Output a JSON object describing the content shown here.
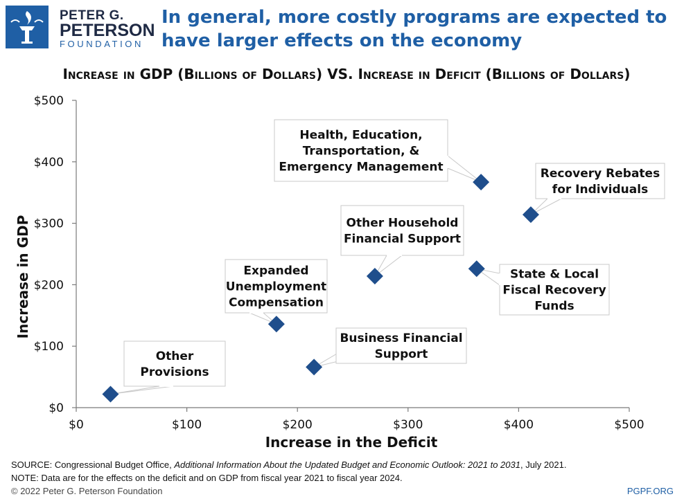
{
  "logo": {
    "line1": "PETER G.",
    "line2": "PETERSON",
    "line3": "FOUNDATION"
  },
  "headline": "In general, more costly programs are expected to have larger effects on the economy",
  "footer": {
    "source_prefix": "SOURCE: Congressional Budget Office, ",
    "source_title": "Additional Information About the Updated Budget and Economic Outlook: 2021 to 2031",
    "source_suffix": ", July 2021.",
    "note": "NOTE: Data are for the effects on the deficit and on GDP from fiscal year 2021 to fiscal year 2024.",
    "copyright": "© 2022 Peter G. Peterson Foundation",
    "site": "PGPF.ORG"
  },
  "colors": {
    "brand_blue": "#1f5fa5",
    "marker": "#1f4e8c",
    "axis": "#7a7a7a"
  },
  "chart_data": {
    "type": "scatter",
    "title": "Increase in GDP (Billions of Dollars) VS. Increase in Deficit (Billions of Dollars)",
    "xlabel": "Increase in the Deficit",
    "ylabel": "Increase in GDP",
    "xlim": [
      0,
      500
    ],
    "ylim": [
      0,
      500
    ],
    "x_ticks": [
      0,
      100,
      200,
      300,
      400,
      500
    ],
    "y_ticks": [
      0,
      100,
      200,
      300,
      400,
      500
    ],
    "x_tick_labels": [
      "$0",
      "$100",
      "$200",
      "$300",
      "$400",
      "$500"
    ],
    "y_tick_labels": [
      "$0",
      "$100",
      "$200",
      "$300",
      "$400",
      "$500"
    ],
    "grid": false,
    "points": [
      {
        "label": "Other Provisions",
        "label_lines": [
          "Other",
          "Provisions"
        ],
        "x": 31,
        "y": 22
      },
      {
        "label": "Expanded Unemployment Compensation",
        "label_lines": [
          "Expanded",
          "Unemployment",
          "Compensation"
        ],
        "x": 181,
        "y": 136
      },
      {
        "label": "Business Financial Support",
        "label_lines": [
          "Business Financial",
          "Support"
        ],
        "x": 215,
        "y": 66
      },
      {
        "label": "Other Household Financial Support",
        "label_lines": [
          "Other Household",
          "Financial Support"
        ],
        "x": 270,
        "y": 214
      },
      {
        "label": "State & Local Fiscal Recovery Funds",
        "label_lines": [
          "State & Local",
          "Fiscal Recovery",
          "Funds"
        ],
        "x": 362,
        "y": 226
      },
      {
        "label": "Health, Education, Transportation, & Emergency Management",
        "label_lines": [
          "Health, Education,",
          "Transportation, &",
          "Emergency Management"
        ],
        "x": 366,
        "y": 367
      },
      {
        "label": "Recovery Rebates for Individuals",
        "label_lines": [
          "Recovery Rebates",
          "for Individuals"
        ],
        "x": 411,
        "y": 314
      }
    ]
  }
}
